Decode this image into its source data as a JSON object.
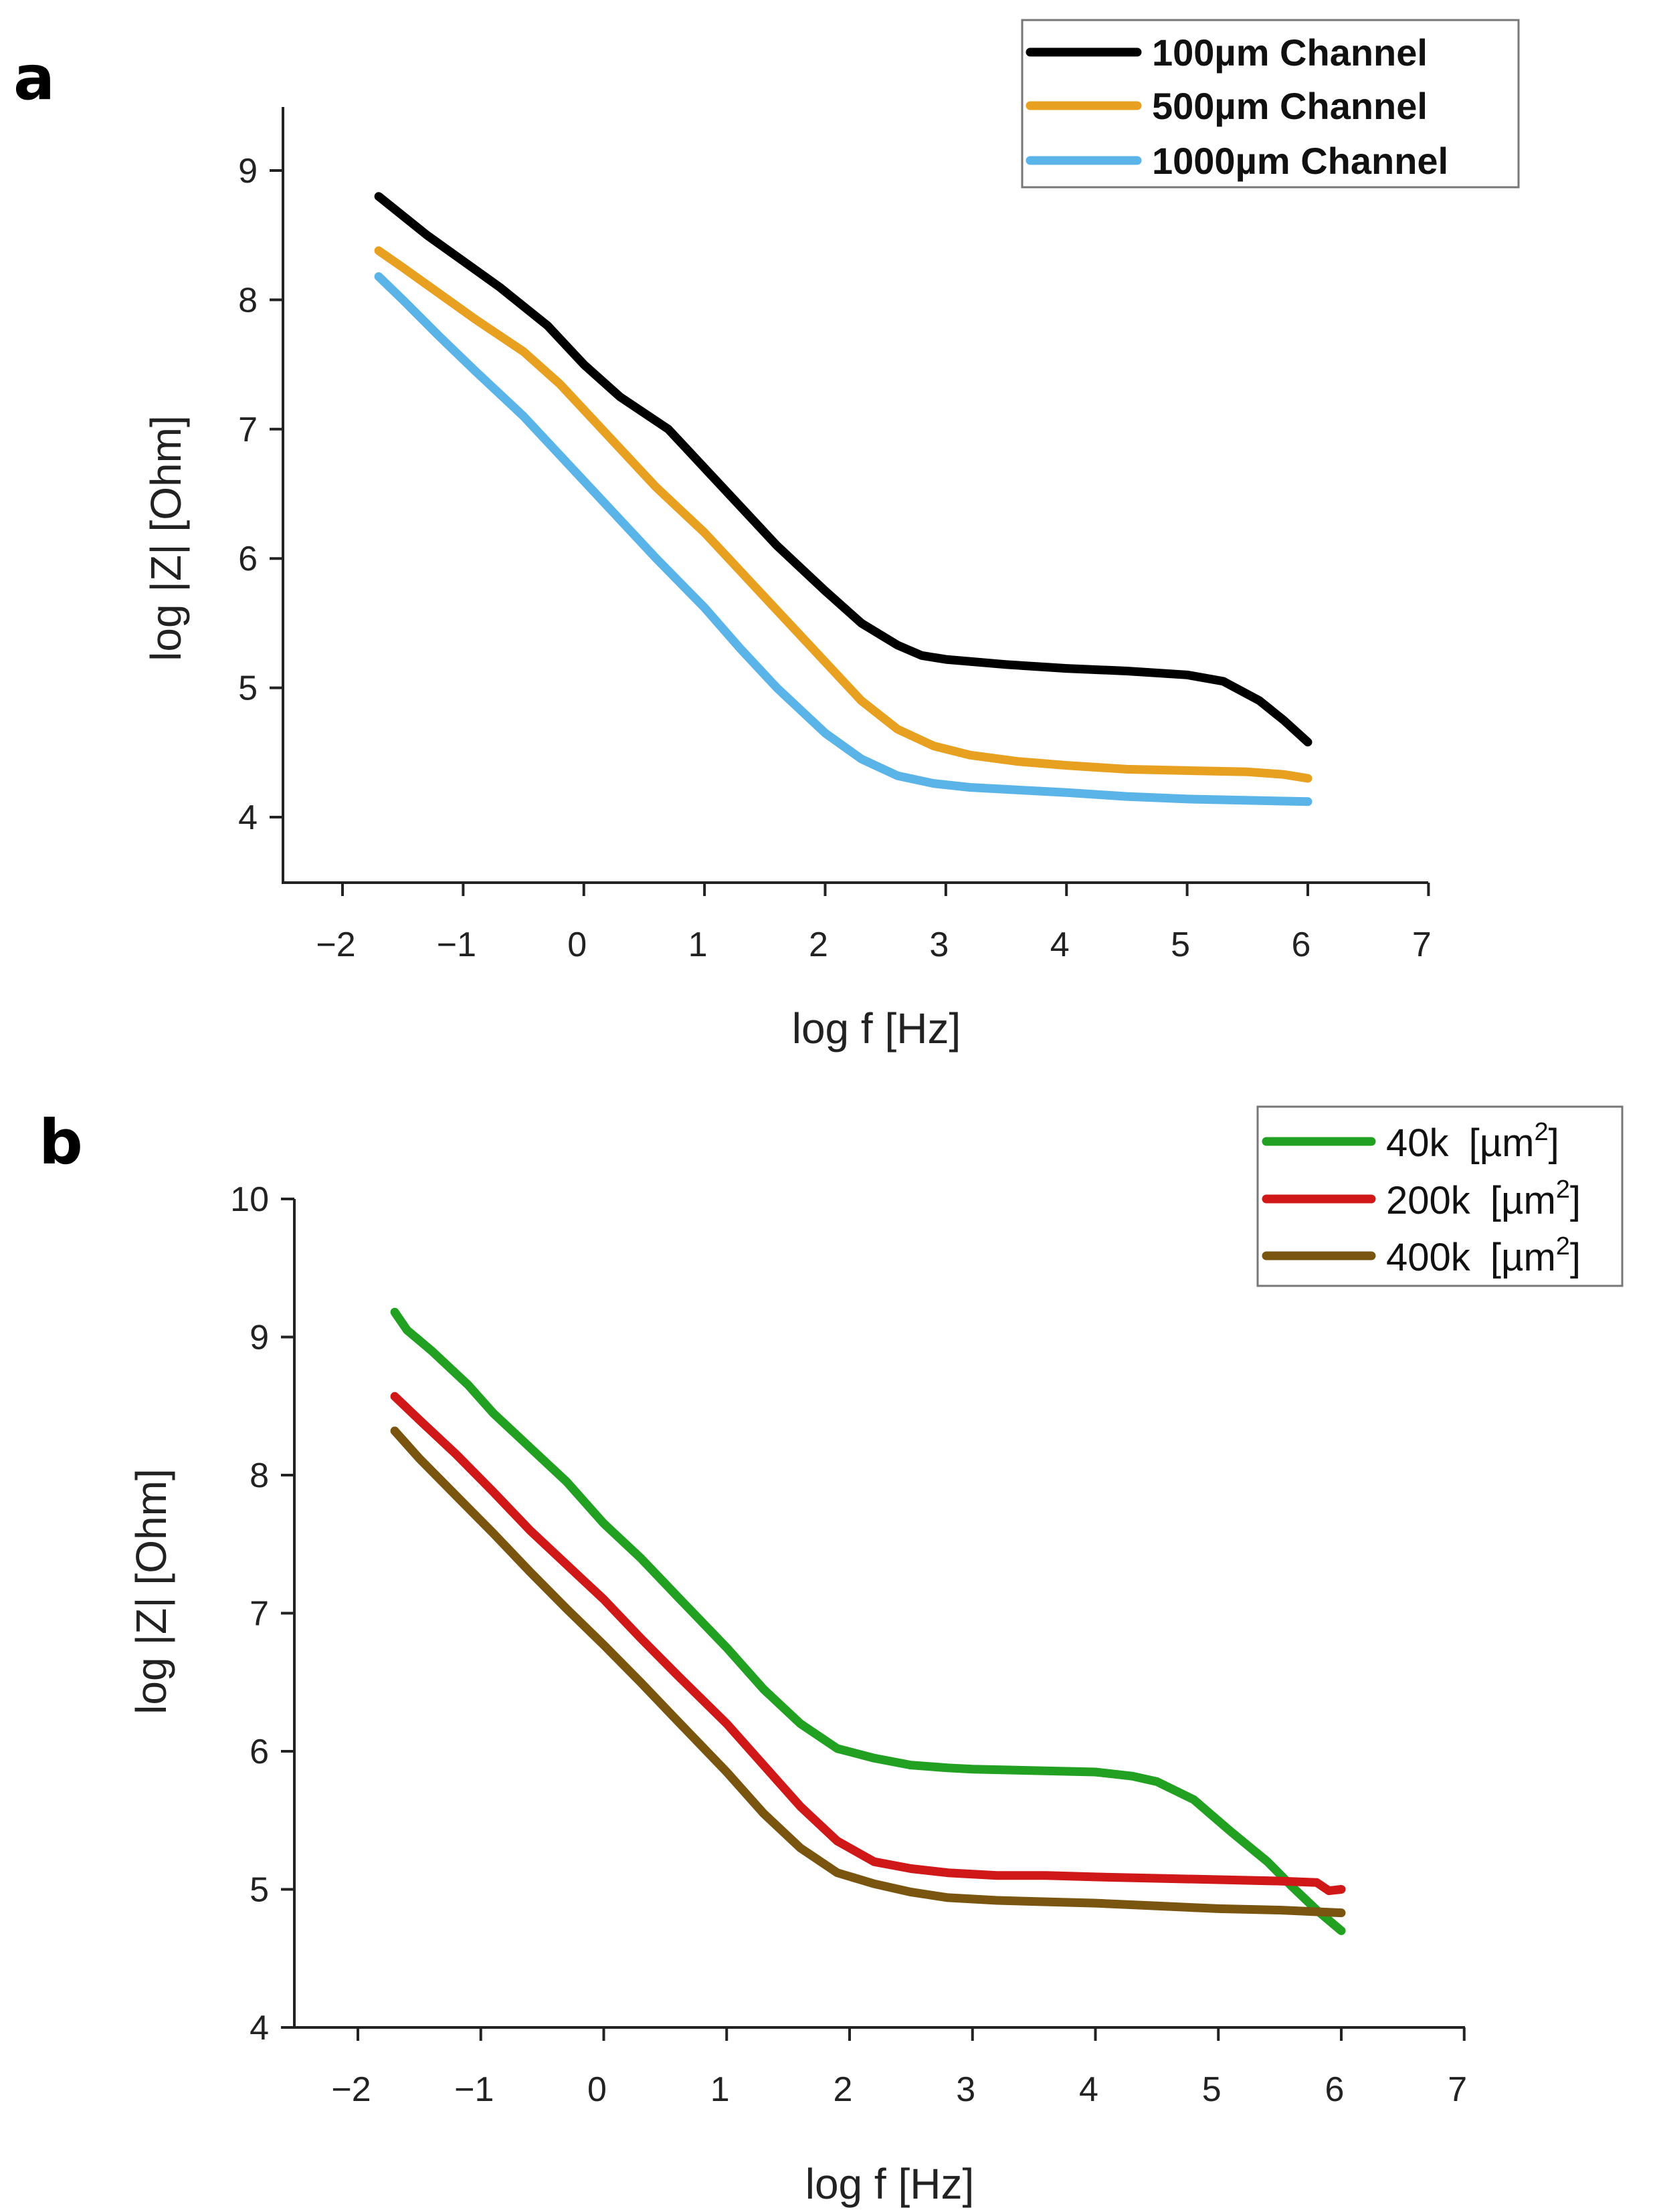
{
  "chart_data": [
    {
      "type": "line",
      "panel_label": "a",
      "title": "",
      "xlabel": "log f [Hz]",
      "ylabel": "log |Z| [Ohm]",
      "xlim": [
        -2.5,
        7
      ],
      "ylim": [
        3.5,
        9.5
      ],
      "xticks": [
        -2,
        -1,
        0,
        1,
        2,
        3,
        4,
        5,
        6,
        7
      ],
      "xtick_labels": [
        "−2",
        "−1",
        "0",
        "1",
        "2",
        "3",
        "4",
        "5",
        "6",
        "7"
      ],
      "yticks": [
        4,
        5,
        6,
        7,
        8,
        9
      ],
      "ytick_labels": [
        "4",
        "5",
        "6",
        "7",
        "8",
        "9"
      ],
      "grid": false,
      "legend": "top-right",
      "series": [
        {
          "name": "100µm Channel",
          "color": "#000000",
          "x": [
            -1.7,
            -1.5,
            -1.3,
            -1.0,
            -0.7,
            -0.3,
            0.0,
            0.3,
            0.7,
            1.0,
            1.3,
            1.6,
            2.0,
            2.3,
            2.6,
            2.8,
            3.0,
            3.5,
            4.0,
            4.5,
            5.0,
            5.3,
            5.6,
            5.8,
            6.0
          ],
          "y": [
            8.8,
            8.65,
            8.5,
            8.3,
            8.1,
            7.8,
            7.5,
            7.25,
            7.0,
            6.7,
            6.4,
            6.1,
            5.75,
            5.5,
            5.33,
            5.25,
            5.22,
            5.18,
            5.15,
            5.13,
            5.1,
            5.05,
            4.9,
            4.75,
            4.58
          ]
        },
        {
          "name": "500µm Channel",
          "color": "#e8a020",
          "x": [
            -1.7,
            -1.5,
            -1.2,
            -0.9,
            -0.5,
            -0.2,
            0.0,
            0.3,
            0.6,
            1.0,
            1.3,
            1.6,
            2.0,
            2.3,
            2.6,
            2.9,
            3.2,
            3.6,
            4.0,
            4.5,
            5.0,
            5.5,
            5.8,
            6.0
          ],
          "y": [
            8.38,
            8.25,
            8.05,
            7.85,
            7.6,
            7.35,
            7.15,
            6.85,
            6.55,
            6.2,
            5.9,
            5.6,
            5.2,
            4.9,
            4.68,
            4.55,
            4.48,
            4.43,
            4.4,
            4.37,
            4.36,
            4.35,
            4.33,
            4.3
          ]
        },
        {
          "name": "1000µm Channel",
          "color": "#5ab4e8",
          "x": [
            -1.7,
            -1.5,
            -1.2,
            -0.9,
            -0.5,
            -0.2,
            0.0,
            0.3,
            0.6,
            1.0,
            1.3,
            1.6,
            2.0,
            2.3,
            2.6,
            2.9,
            3.2,
            3.6,
            4.0,
            4.5,
            5.0,
            5.5,
            6.0
          ],
          "y": [
            8.18,
            8.0,
            7.72,
            7.45,
            7.1,
            6.8,
            6.6,
            6.3,
            6.0,
            5.62,
            5.3,
            5.0,
            4.65,
            4.45,
            4.32,
            4.26,
            4.23,
            4.21,
            4.19,
            4.16,
            4.14,
            4.13,
            4.12
          ]
        }
      ]
    },
    {
      "type": "line",
      "panel_label": "b",
      "title": "",
      "xlabel": "log f [Hz]",
      "ylabel": "log |Z| [Ohm]",
      "xlim": [
        -2.5,
        7
      ],
      "ylim": [
        4,
        10
      ],
      "xticks": [
        -2,
        -1,
        0,
        1,
        2,
        3,
        4,
        5,
        6,
        7
      ],
      "xtick_labels": [
        "−2",
        "−1",
        "0",
        "1",
        "2",
        "3",
        "4",
        "5",
        "6",
        "7"
      ],
      "yticks": [
        4,
        5,
        6,
        7,
        8,
        9,
        10
      ],
      "ytick_labels": [
        "4",
        "5",
        "6",
        "7",
        "8",
        "9",
        "10"
      ],
      "grid": false,
      "legend": "top-right",
      "legend_unit_prefix": "[µm",
      "legend_unit_exp": "2",
      "legend_unit_suffix": "]",
      "series": [
        {
          "name": "40k",
          "color": "#22a022",
          "x": [
            -1.7,
            -1.6,
            -1.4,
            -1.1,
            -0.9,
            -0.6,
            -0.3,
            0.0,
            0.3,
            0.6,
            1.0,
            1.3,
            1.6,
            1.9,
            2.2,
            2.5,
            2.8,
            3.0,
            3.5,
            4.0,
            4.3,
            4.5,
            4.8,
            5.1,
            5.4,
            5.6,
            5.8,
            6.0
          ],
          "y": [
            9.18,
            9.05,
            8.9,
            8.65,
            8.45,
            8.2,
            7.95,
            7.65,
            7.4,
            7.12,
            6.75,
            6.45,
            6.2,
            6.02,
            5.95,
            5.9,
            5.88,
            5.87,
            5.86,
            5.85,
            5.82,
            5.78,
            5.65,
            5.42,
            5.2,
            5.02,
            4.85,
            4.7
          ]
        },
        {
          "name": "200k",
          "color": "#d01818",
          "x": [
            -1.7,
            -1.5,
            -1.2,
            -0.9,
            -0.6,
            -0.3,
            0.0,
            0.3,
            0.6,
            1.0,
            1.3,
            1.6,
            1.9,
            2.2,
            2.5,
            2.8,
            3.2,
            3.6,
            4.0,
            4.5,
            5.0,
            5.5,
            5.8,
            5.9,
            6.0
          ],
          "y": [
            8.57,
            8.4,
            8.15,
            7.88,
            7.6,
            7.35,
            7.1,
            6.82,
            6.55,
            6.2,
            5.9,
            5.6,
            5.35,
            5.2,
            5.15,
            5.12,
            5.1,
            5.1,
            5.09,
            5.08,
            5.07,
            5.06,
            5.05,
            4.99,
            5.0
          ]
        },
        {
          "name": "400k",
          "color": "#7a5510",
          "x": [
            -1.7,
            -1.5,
            -1.2,
            -0.9,
            -0.6,
            -0.3,
            0.0,
            0.3,
            0.6,
            1.0,
            1.3,
            1.6,
            1.9,
            2.2,
            2.5,
            2.8,
            3.2,
            3.6,
            4.0,
            4.5,
            5.0,
            5.5,
            6.0
          ],
          "y": [
            8.32,
            8.12,
            7.85,
            7.58,
            7.3,
            7.03,
            6.77,
            6.5,
            6.22,
            5.85,
            5.55,
            5.3,
            5.12,
            5.04,
            4.98,
            4.94,
            4.92,
            4.91,
            4.9,
            4.88,
            4.86,
            4.85,
            4.83
          ]
        }
      ]
    }
  ]
}
